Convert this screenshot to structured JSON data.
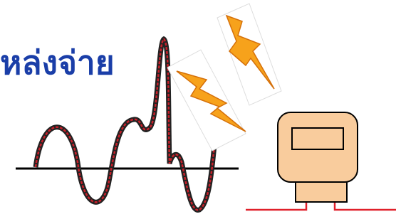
{
  "title": "หล่งจ่าย"
}
